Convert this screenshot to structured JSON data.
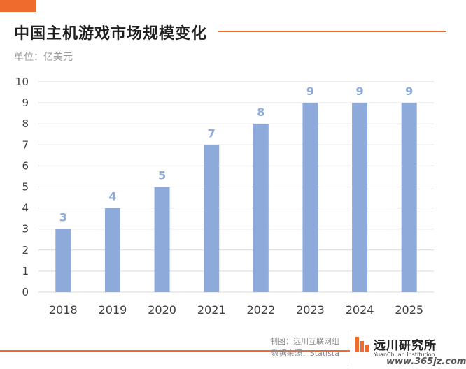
{
  "header": {
    "title": "中国主机游戏市场规模变化",
    "unit": "单位：亿美元"
  },
  "footer": {
    "credit_line1": "制图：远川互联网组",
    "credit_line2": "数据来源：Statista",
    "brand_name": "远川研究所",
    "brand_english": "YuanChuan Institution",
    "watermark": "www.365jz.com"
  },
  "colors": {
    "accent": "#ee6a2d",
    "bar": "#8eaadb",
    "data_label": "#8eaadb",
    "grid": "#d9d9d9",
    "tick_text": "#404040"
  },
  "chart_data": {
    "type": "bar",
    "title": "中国主机游戏市场规模变化",
    "ylabel": "单位：亿美元",
    "categories": [
      "2018",
      "2019",
      "2020",
      "2021",
      "2022",
      "2023",
      "2024",
      "2025"
    ],
    "values": [
      3,
      4,
      5,
      7,
      8,
      9,
      9,
      9
    ],
    "ylim": [
      0,
      10
    ],
    "yticks": [
      "0",
      "1",
      "2",
      "3",
      "4",
      "5",
      "6",
      "7",
      "8",
      "9",
      "10"
    ],
    "grid": true,
    "data_labels": true
  }
}
